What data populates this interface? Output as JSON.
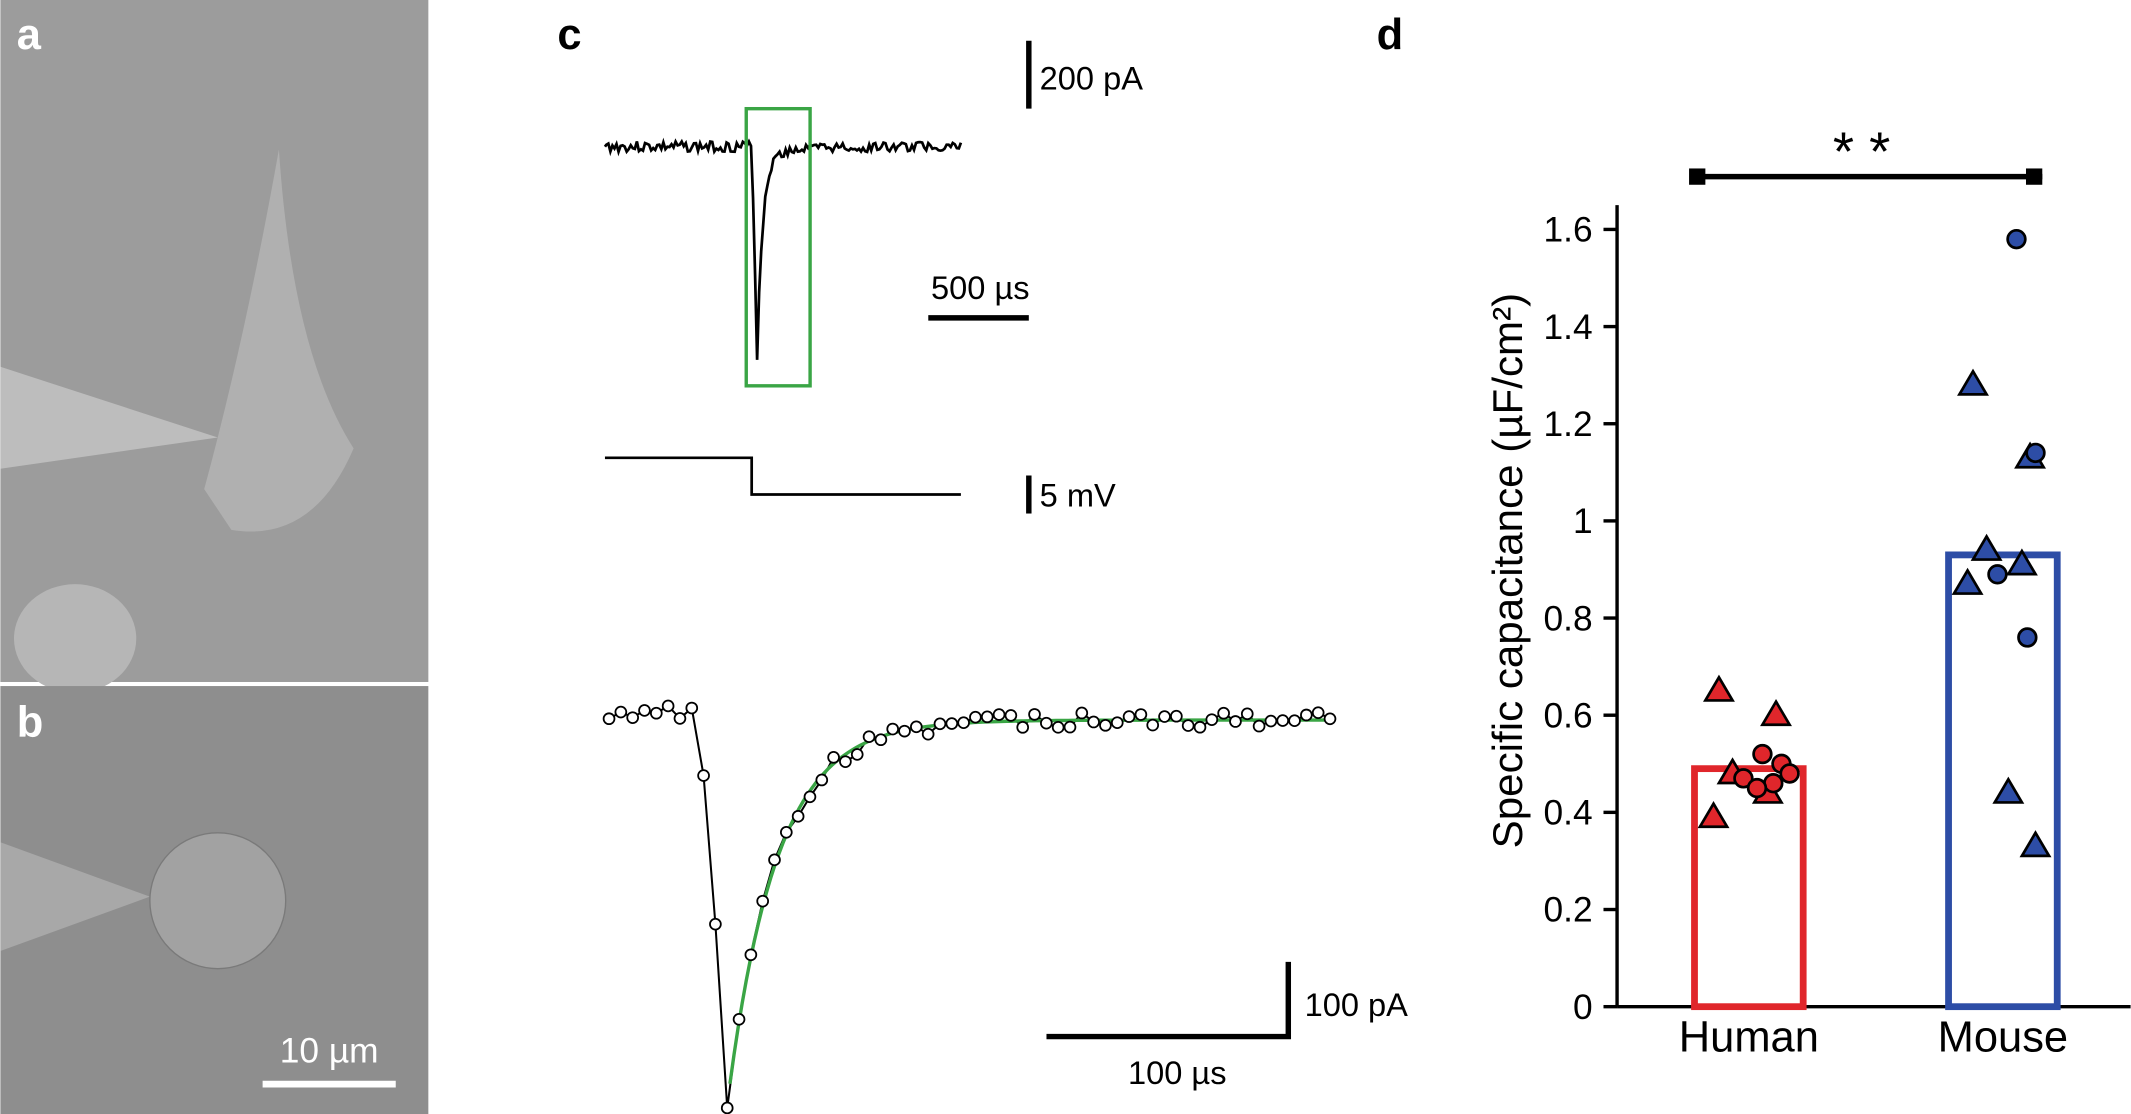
{
  "panel_labels": [
    "a",
    "b",
    "c",
    "d"
  ],
  "scale_bars": {
    "image": "10 µm",
    "current_top": "200 pA",
    "time_top": "500 µs",
    "voltage": "5 mV",
    "current_bottom": "100 pA",
    "time_bottom": "100 µs"
  },
  "chart_data": {
    "type": "bar",
    "ylabel": "Specific capacitance (µF/cm²)",
    "significance": "* *",
    "categories": [
      "Human",
      "Mouse"
    ],
    "values": [
      0.49,
      0.93
    ],
    "colors": [
      "#e0262b",
      "#2d4da6"
    ],
    "triangles": [
      [
        0.65,
        0.6,
        0.48,
        0.44,
        0.39
      ],
      [
        1.28,
        1.13,
        0.94,
        0.91,
        0.87,
        0.44,
        0.33
      ]
    ],
    "circles": [
      [
        0.52,
        0.5,
        0.47,
        0.46,
        0.45,
        0.48
      ],
      [
        1.58,
        1.14,
        0.89,
        0.76
      ]
    ],
    "ylim": [
      0,
      1.65
    ],
    "yticks": [
      0,
      0.2,
      0.4,
      0.6,
      0.8,
      1,
      1.2,
      1.4,
      1.6
    ]
  }
}
